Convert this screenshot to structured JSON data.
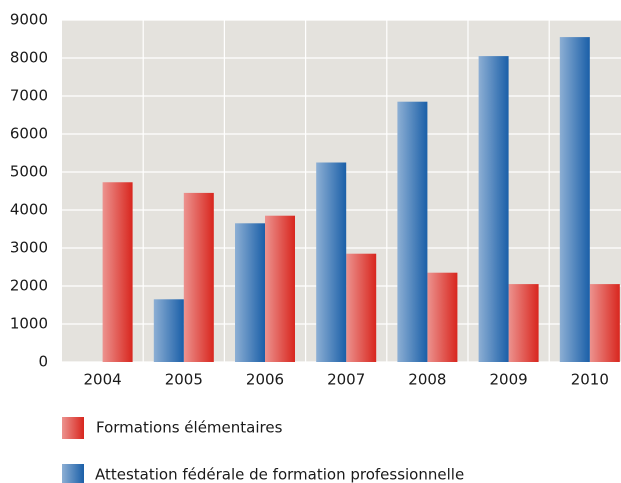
{
  "chart_data": {
    "type": "bar",
    "categories": [
      "2004",
      "2005",
      "2006",
      "2007",
      "2008",
      "2009",
      "2010"
    ],
    "series": [
      {
        "name": "Formations élémentaires",
        "color": "#d8261e",
        "values": [
          4730,
          4450,
          3850,
          2850,
          2350,
          2050,
          2050
        ]
      },
      {
        "name": "Attestation fédérale de formation professionnelle",
        "color": "#1a5fa8",
        "values": [
          null,
          1650,
          3650,
          5250,
          6850,
          8050,
          8550
        ]
      }
    ],
    "ylim": [
      0,
      9000
    ],
    "yticks": [
      0,
      1000,
      2000,
      3000,
      4000,
      5000,
      6000,
      7000,
      8000,
      9000
    ],
    "grid": true
  }
}
